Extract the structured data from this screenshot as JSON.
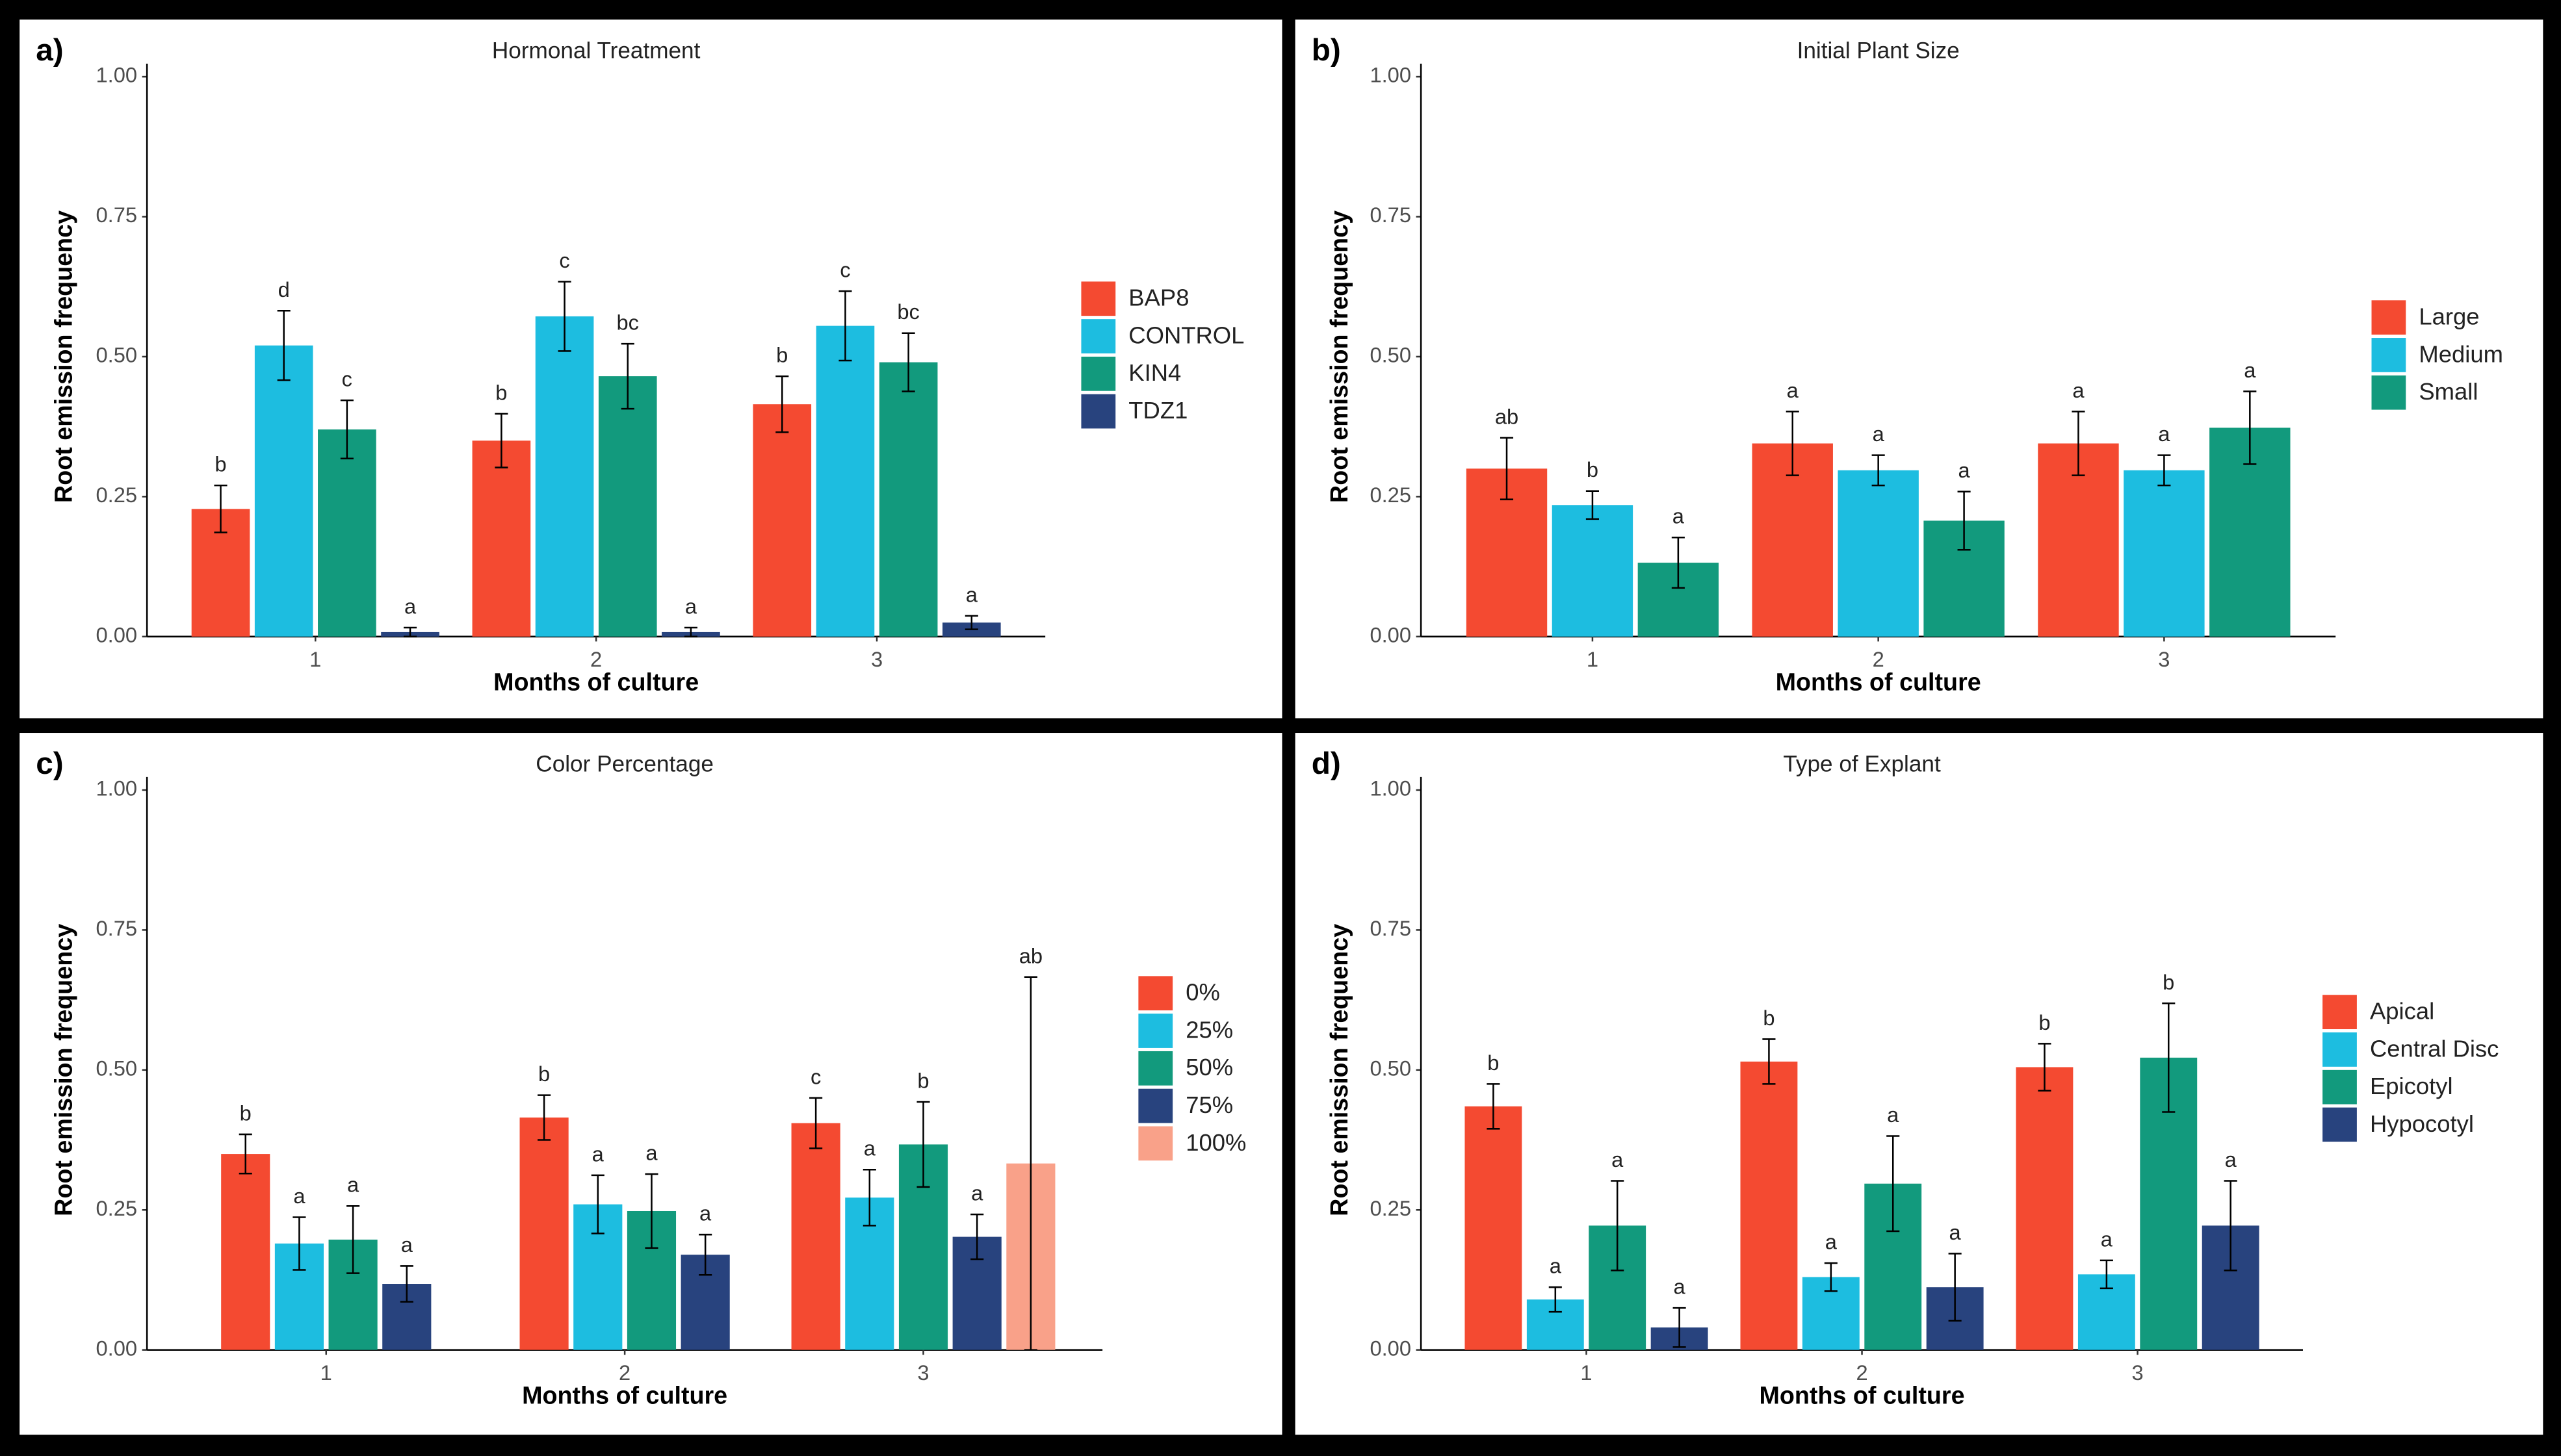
{
  "chart_data": [
    {
      "type": "bar",
      "panel_label": "a)",
      "title": "Hormonal Treatment",
      "xlabel": "Months of culture",
      "ylabel": "Root emission frequency",
      "categories": [
        "1",
        "2",
        "3"
      ],
      "ylim": [
        0,
        1
      ],
      "yticks": [
        {
          "value": 0,
          "label": "0.00"
        },
        {
          "value": 0.25,
          "label": "0.25"
        },
        {
          "value": 0.5,
          "label": "0.50"
        },
        {
          "value": 0.75,
          "label": "0.75"
        },
        {
          "value": 1,
          "label": "1.00"
        }
      ],
      "series": [
        {
          "name": "BAP8",
          "color": "#F44A31",
          "values": [
            0.228,
            0.35,
            0.415
          ],
          "errors": [
            0.042,
            0.048,
            0.05
          ],
          "letters": [
            "b",
            "b",
            "b"
          ]
        },
        {
          "name": "CONTROL",
          "color": "#1DBDE0",
          "values": [
            0.52,
            0.572,
            0.555
          ],
          "errors": [
            0.062,
            0.062,
            0.062
          ],
          "letters": [
            "d",
            "c",
            "c"
          ]
        },
        {
          "name": "KIN4",
          "color": "#129A7D",
          "values": [
            0.37,
            0.465,
            0.49
          ],
          "errors": [
            0.052,
            0.058,
            0.052
          ],
          "letters": [
            "c",
            "bc",
            "bc"
          ]
        },
        {
          "name": "TDZ1",
          "color": "#28437E",
          "values": [
            0.008,
            0.008,
            0.025
          ],
          "errors": [
            0.008,
            0.008,
            0.012
          ],
          "letters": [
            "a",
            "a",
            "a"
          ]
        }
      ]
    },
    {
      "type": "bar",
      "panel_label": "b)",
      "title": "Initial Plant Size",
      "xlabel": "Months of culture",
      "ylabel": "Root emission frequency",
      "categories": [
        "1",
        "2",
        "3"
      ],
      "ylim": [
        0,
        1
      ],
      "yticks": [
        {
          "value": 0,
          "label": "0.00"
        },
        {
          "value": 0.25,
          "label": "0.25"
        },
        {
          "value": 0.5,
          "label": "0.50"
        },
        {
          "value": 0.75,
          "label": "0.75"
        },
        {
          "value": 1,
          "label": "1.00"
        }
      ],
      "series": [
        {
          "name": "Large",
          "color": "#F44A31",
          "values": [
            0.3,
            0.345,
            0.345
          ],
          "errors": [
            0.055,
            0.057,
            0.057
          ],
          "letters": [
            "ab",
            "a",
            "a"
          ]
        },
        {
          "name": "Medium",
          "color": "#1DBDE0",
          "values": [
            0.235,
            0.297,
            0.297
          ],
          "errors": [
            0.025,
            0.027,
            0.027
          ],
          "letters": [
            "b",
            "a",
            "a"
          ]
        },
        {
          "name": "Small",
          "color": "#129A7D",
          "values": [
            0.132,
            0.207,
            0.373
          ],
          "errors": [
            0.045,
            0.052,
            0.065
          ],
          "letters": [
            "a",
            "a",
            "a"
          ]
        }
      ]
    },
    {
      "type": "bar",
      "panel_label": "c)",
      "title": "Color Percentage",
      "xlabel": "Months of culture",
      "ylabel": "Root emission frequency",
      "categories": [
        "1",
        "2",
        "3"
      ],
      "ylim": [
        0,
        1
      ],
      "yticks": [
        {
          "value": 0,
          "label": "0.00"
        },
        {
          "value": 0.25,
          "label": "0.25"
        },
        {
          "value": 0.5,
          "label": "0.50"
        },
        {
          "value": 0.75,
          "label": "0.75"
        },
        {
          "value": 1,
          "label": "1.00"
        }
      ],
      "series": [
        {
          "name": "0%",
          "color": "#F44A31",
          "values": [
            0.35,
            0.415,
            0.405
          ],
          "errors": [
            0.035,
            0.04,
            0.045
          ],
          "letters": [
            "b",
            "b",
            "c"
          ]
        },
        {
          "name": "25%",
          "color": "#1DBDE0",
          "values": [
            0.19,
            0.26,
            0.272
          ],
          "errors": [
            0.047,
            0.052,
            0.05
          ],
          "letters": [
            "a",
            "a",
            "a"
          ]
        },
        {
          "name": "50%",
          "color": "#129A7D",
          "values": [
            0.197,
            0.248,
            0.367
          ],
          "errors": [
            0.06,
            0.066,
            0.076
          ],
          "letters": [
            "a",
            "a",
            "b"
          ]
        },
        {
          "name": "75%",
          "color": "#28437E",
          "values": [
            0.118,
            0.17,
            0.202
          ],
          "errors": [
            0.032,
            0.036,
            0.04
          ],
          "letters": [
            "a",
            "a",
            "a"
          ]
        },
        {
          "name": "100%",
          "color": "#F9A189",
          "values": [
            null,
            null,
            0.333
          ],
          "errors": [
            null,
            null,
            0.333
          ],
          "letters": [
            null,
            null,
            "ab"
          ]
        }
      ]
    },
    {
      "type": "bar",
      "panel_label": "d)",
      "title": "Type of Explant",
      "xlabel": "Months of culture",
      "ylabel": "Root emission frequency",
      "categories": [
        "1",
        "2",
        "3"
      ],
      "ylim": [
        0,
        1
      ],
      "yticks": [
        {
          "value": 0,
          "label": "0.00"
        },
        {
          "value": 0.25,
          "label": "0.25"
        },
        {
          "value": 0.5,
          "label": "0.50"
        },
        {
          "value": 0.75,
          "label": "0.75"
        },
        {
          "value": 1,
          "label": "1.00"
        }
      ],
      "series": [
        {
          "name": "Apical",
          "color": "#F44A31",
          "values": [
            0.435,
            0.515,
            0.505
          ],
          "errors": [
            0.04,
            0.04,
            0.042
          ],
          "letters": [
            "b",
            "b",
            "b"
          ]
        },
        {
          "name": "Central Disc",
          "color": "#1DBDE0",
          "values": [
            0.09,
            0.13,
            0.135
          ],
          "errors": [
            0.022,
            0.025,
            0.025
          ],
          "letters": [
            "a",
            "a",
            "a"
          ]
        },
        {
          "name": "Epicotyl",
          "color": "#129A7D",
          "values": [
            0.222,
            0.297,
            0.522
          ],
          "errors": [
            0.08,
            0.085,
            0.097
          ],
          "letters": [
            "a",
            "a",
            "b"
          ]
        },
        {
          "name": "Hypocotyl",
          "color": "#28437E",
          "values": [
            0.04,
            0.112,
            0.222
          ],
          "errors": [
            0.035,
            0.06,
            0.08
          ],
          "letters": [
            "a",
            "a",
            "a"
          ]
        }
      ]
    }
  ]
}
